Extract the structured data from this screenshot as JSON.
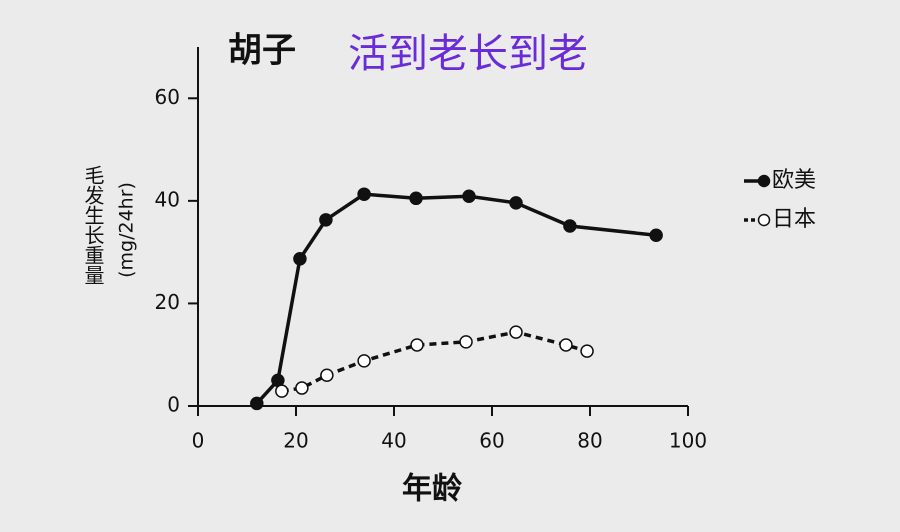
{
  "chart_data": {
    "type": "line",
    "title": "胡子",
    "subtitle": "活到老长到老",
    "y_label": "毛发生长重量",
    "y_unit": "(mg/24hr)",
    "x_label": "年龄",
    "xlim": [
      0,
      100
    ],
    "xticks": [
      0,
      20,
      40,
      60,
      80,
      100
    ],
    "ylim": [
      0,
      70
    ],
    "yticks": [
      0,
      20,
      40,
      60
    ],
    "grid": false,
    "legend": "right",
    "series": [
      {
        "name": "欧美",
        "color": "#111111",
        "marker": "filled",
        "dash": false,
        "x": [
          12,
          16.3,
          20.8,
          26.1,
          33.9,
          44.5,
          55.3,
          64.9,
          75.9,
          93.5
        ],
        "values": [
          0.5,
          5,
          28.7,
          36.3,
          41.3,
          40.5,
          40.9,
          39.6,
          35.1,
          33.3
        ]
      },
      {
        "name": "日本",
        "color": "#111111",
        "marker": "open",
        "dash": true,
        "x": [
          17.1,
          21.2,
          26.3,
          33.9,
          44.7,
          54.7,
          64.9,
          75.1,
          79.4
        ],
        "values": [
          2.9,
          3.5,
          6,
          8.8,
          11.9,
          12.5,
          14.4,
          11.9,
          10.7
        ]
      }
    ]
  }
}
